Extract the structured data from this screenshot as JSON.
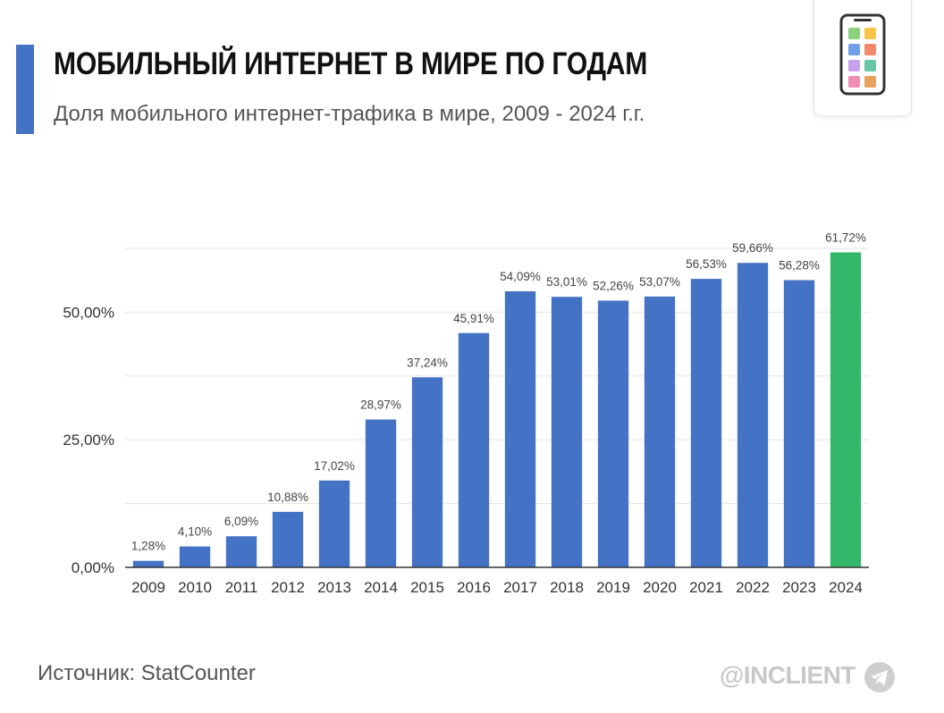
{
  "header": {
    "title": "МОБИЛЬНЫЙ ИНТЕРНЕТ В МИРЕ ПО ГОДАМ",
    "subtitle": "Доля мобильного интернет-трафика в мире, 2009 - 2024 г.г."
  },
  "footer": {
    "source": "Источник: StatCounter",
    "brand": "@INCLIENT"
  },
  "icons": {
    "corner": "smartphone-icon",
    "brand": "telegram-icon"
  },
  "colors": {
    "accent": "#4472c4",
    "bar": "#4472c4",
    "highlight": "#33b86b",
    "grid": "#e3e3e3",
    "axis": "#333333"
  },
  "chart_data": {
    "type": "bar",
    "categories": [
      "2009",
      "2010",
      "2011",
      "2012",
      "2013",
      "2014",
      "2015",
      "2016",
      "2017",
      "2018",
      "2019",
      "2020",
      "2021",
      "2022",
      "2023",
      "2024"
    ],
    "values": [
      1.28,
      4.1,
      6.09,
      10.88,
      17.02,
      28.97,
      37.24,
      45.91,
      54.09,
      53.01,
      52.26,
      53.07,
      56.53,
      59.66,
      56.28,
      61.72
    ],
    "value_labels": [
      "1,28%",
      "4,10%",
      "6,09%",
      "10,88%",
      "17,02%",
      "28,97%",
      "37,24%",
      "45,91%",
      "54,09%",
      "53,01%",
      "52,26%",
      "53,07%",
      "56,53%",
      "59,66%",
      "56,28%",
      "61,72%"
    ],
    "highlight_category": "2024",
    "yticks": [
      0,
      25,
      50
    ],
    "ytick_labels": [
      "0,00%",
      "25,00%",
      "50,00%"
    ],
    "ylim": [
      0,
      62.5
    ],
    "grid": true,
    "legend": "none"
  }
}
